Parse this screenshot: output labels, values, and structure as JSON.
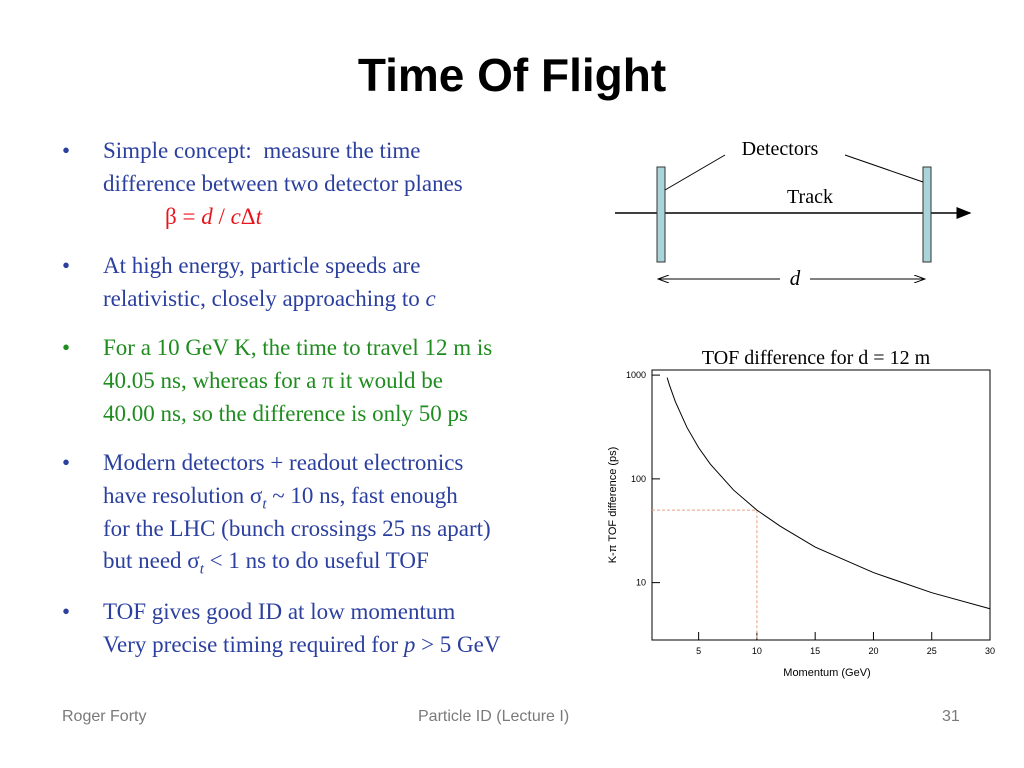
{
  "slide": {
    "title": "Time Of Flight",
    "bullets": [
      {
        "color": "#2b3f9e",
        "lines": [
          [
            "Simple concept:  measure the time"
          ],
          [
            "difference between two detector planes"
          ],
          [
            {
              "text": "β = "
            },
            {
              "text": "d",
              "italic": true
            },
            {
              "text": " / "
            },
            {
              "text": "c",
              "italic": true
            },
            {
              "text": "Δ"
            },
            {
              "text": "t",
              "italic": true
            }
          ]
        ],
        "formula_color": "#e8141c"
      },
      {
        "color": "#2b3f9e",
        "lines": [
          [
            "At high energy, particle speeds are"
          ],
          [
            "relativistic, closely approaching to ",
            {
              "text": "c",
              "italic": true
            }
          ]
        ]
      },
      {
        "color": "#1e8c1e",
        "lines": [
          [
            "For a 10 GeV K, the time to travel 12 m is"
          ],
          [
            "40.05 ns, whereas for a π it would be"
          ],
          [
            "40.00 ns, so the difference is only 50 ps"
          ]
        ]
      },
      {
        "color": "#2b3f9e",
        "lines": [
          [
            "Modern detectors + readout electronics"
          ],
          [
            "have resolution σ",
            {
              "text": "t",
              "sub": true
            },
            " ~ 10 ns, fast enough"
          ],
          [
            "for the LHC (bunch crossings 25 ns apart)"
          ],
          [
            "but need σ",
            {
              "text": "t",
              "sub": true
            },
            " < 1 ns to do useful TOF"
          ]
        ]
      },
      {
        "color": "#2b3f9e",
        "lines": [
          [
            "TOF gives good ID at low momentum"
          ],
          [
            "Very precise timing required for ",
            {
              "text": "p",
              "italic": true
            },
            " > 5 GeV"
          ]
        ]
      }
    ],
    "bullet_symbol": "•",
    "diagram": {
      "detectors": "Detectors",
      "track": "Track",
      "distance": "d"
    },
    "footer": {
      "author": "Roger Forty",
      "course": "Particle ID  (Lecture I)",
      "page": "31"
    }
  },
  "chart_data": {
    "type": "line",
    "title": "TOF difference for d = 12 m",
    "xlabel": "Momentum  (GeV)",
    "ylabel": "K-π TOF difference  (ps)",
    "x": [
      2.3,
      2.5,
      3,
      4,
      5,
      6,
      8,
      10,
      12,
      15,
      20,
      25,
      30
    ],
    "series": [
      {
        "name": "K-π TOF difference",
        "color": "#000000",
        "values": [
          945,
          800,
          556,
          313,
          200,
          139,
          78,
          50,
          35,
          22,
          12.5,
          8,
          5.6
        ]
      }
    ],
    "xlim": [
      1,
      30
    ],
    "xticks": [
      5,
      10,
      15,
      20,
      25,
      30
    ],
    "ylim": [
      2.8,
      1120
    ],
    "yticks": [
      10,
      100,
      1000
    ],
    "log_y": true,
    "reference": {
      "x": 10,
      "y": 50,
      "color": "#e8a080"
    }
  }
}
